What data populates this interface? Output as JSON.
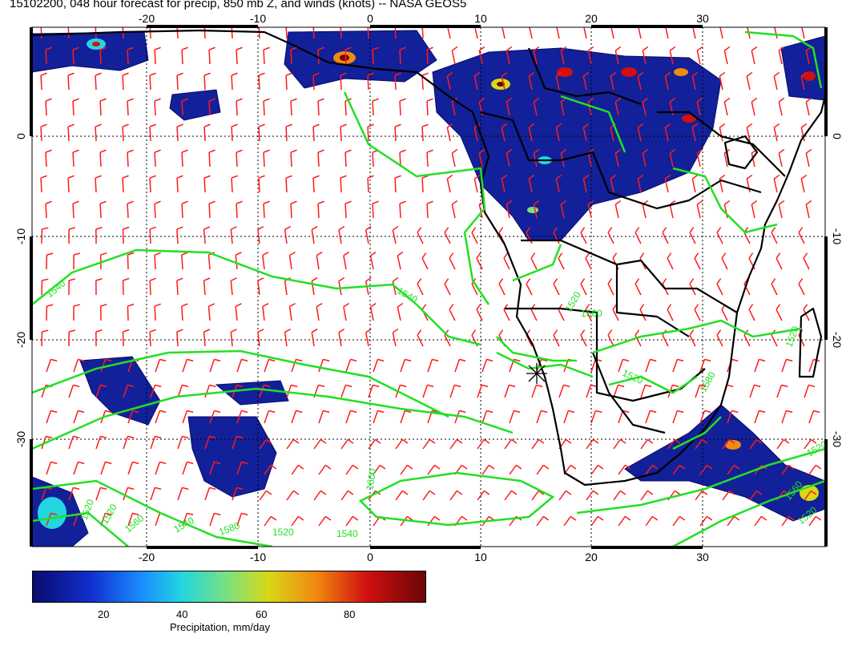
{
  "title": "15102200, 048 hour forecast for precip, 850 mb Z, and winds (knots) -- NASA GEOS5",
  "map": {
    "lon_ticks": [
      "-20",
      "-10",
      "0",
      "10",
      "20",
      "30"
    ],
    "lat_ticks": [
      "0",
      "-10",
      "-20",
      "-30"
    ],
    "contour_labels": [
      "1540",
      "1540",
      "1520",
      "1520",
      "1520",
      "1600",
      "1520",
      "1520",
      "1560",
      "1540",
      "1580",
      "1520",
      "1540",
      "1560",
      "1520",
      "1560",
      "1580",
      "1520"
    ],
    "colors": {
      "contour": "#22e022",
      "barb": "#ff1a1a",
      "border": "#000000",
      "precip_low": "#0b0b6b",
      "precip_high": "#6b0505"
    }
  },
  "colorbar": {
    "ticks": [
      "20",
      "40",
      "60",
      "80"
    ],
    "label": "Precipitation, mm/day"
  }
}
